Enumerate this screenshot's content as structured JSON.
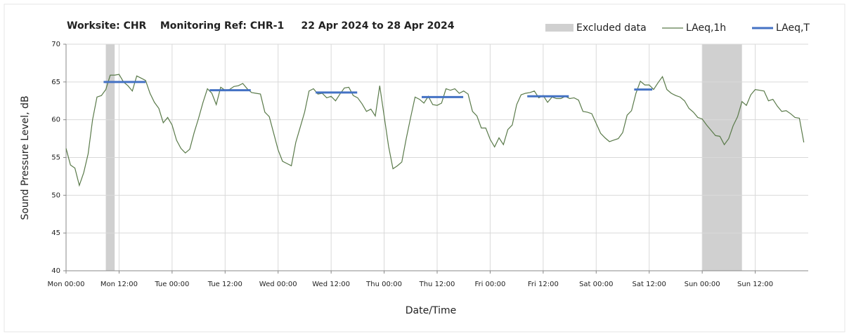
{
  "chart_data": {
    "type": "line",
    "title": "Worksite: CHR    Monitoring Ref: CHR-1     22 Apr 2024 to 28 Apr 2024",
    "x_label": "Date/Time",
    "y_label": "Sound Pressure Level, dB",
    "xlim": [
      0,
      168
    ],
    "ylim": [
      40,
      70
    ],
    "yticks": [
      40,
      45,
      50,
      55,
      60,
      65,
      70
    ],
    "xticks": [
      {
        "value": 0,
        "label": "Mon 00:00"
      },
      {
        "value": 12,
        "label": "Mon 12:00"
      },
      {
        "value": 24,
        "label": "Tue 00:00"
      },
      {
        "value": 36,
        "label": "Tue 12:00"
      },
      {
        "value": 48,
        "label": "Wed 00:00"
      },
      {
        "value": 60,
        "label": "Wed 12:00"
      },
      {
        "value": 72,
        "label": "Thu 00:00"
      },
      {
        "value": 84,
        "label": "Thu 12:00"
      },
      {
        "value": 96,
        "label": "Fri 00:00"
      },
      {
        "value": 108,
        "label": "Fri 12:00"
      },
      {
        "value": 120,
        "label": "Sat 00:00"
      },
      {
        "value": 132,
        "label": "Sat 12:00"
      },
      {
        "value": 144,
        "label": "Sun 00:00"
      },
      {
        "value": 156,
        "label": "Sun 12:00"
      }
    ],
    "grid": true,
    "excluded": {
      "name": "Excluded data",
      "color": "#d0d0d0",
      "ranges": [
        [
          9,
          11
        ],
        [
          144,
          153
        ]
      ]
    },
    "x": [
      0,
      1,
      2,
      3,
      4,
      5,
      6,
      7,
      8,
      9,
      10,
      11,
      12,
      13,
      14,
      15,
      16,
      17,
      18,
      19,
      20,
      21,
      22,
      23,
      24,
      25,
      26,
      27,
      28,
      29,
      30,
      31,
      32,
      33,
      34,
      35,
      36,
      37,
      38,
      39,
      40,
      41,
      42,
      43,
      44,
      45,
      46,
      47,
      48,
      49,
      50,
      51,
      52,
      53,
      54,
      55,
      56,
      57,
      58,
      59,
      60,
      61,
      62,
      63,
      64,
      65,
      66,
      67,
      68,
      69,
      70,
      71,
      72,
      73,
      74,
      75,
      76,
      77,
      78,
      79,
      80,
      81,
      82,
      83,
      84,
      85,
      86,
      87,
      88,
      89,
      90,
      91,
      92,
      93,
      94,
      95,
      96,
      97,
      98,
      99,
      100,
      101,
      102,
      103,
      104,
      105,
      106,
      107,
      108,
      109,
      110,
      111,
      112,
      113,
      114,
      115,
      116,
      117,
      118,
      119,
      120,
      121,
      122,
      123,
      124,
      125,
      126,
      127,
      128,
      129,
      130,
      131,
      132,
      133,
      134,
      135,
      136,
      137,
      138,
      139,
      140,
      141,
      142,
      143,
      144,
      145,
      146,
      147,
      148,
      149,
      150,
      151,
      152,
      153,
      154,
      155,
      156,
      157,
      158,
      159,
      160,
      161,
      162,
      163,
      164,
      165,
      166,
      167
    ],
    "series": [
      {
        "name": "LAeq,1h",
        "color": "#5a7a4a",
        "values": [
          56.2,
          54,
          53.6,
          51.3,
          53,
          55.5,
          60,
          63,
          63.2,
          64,
          65.9,
          65.9,
          66,
          65,
          64.5,
          63.8,
          65.8,
          65.5,
          65.2,
          63.5,
          62.3,
          61.5,
          59.6,
          60.3,
          59.3,
          57.3,
          56.2,
          55.6,
          56.1,
          58.3,
          60.2,
          62.3,
          64.1,
          63.5,
          62,
          64.3,
          63.9,
          64,
          64.4,
          64.5,
          64.8,
          64.1,
          63.6,
          63.5,
          63.4,
          61,
          60.4,
          58.2,
          56,
          54.5,
          54.2,
          53.9,
          57,
          59,
          61,
          63.8,
          64.1,
          63.4,
          63.5,
          62.9,
          63.1,
          62.5,
          63.4,
          64.2,
          64.3,
          63.2,
          62.9,
          62.1,
          61.1,
          61.4,
          60.5,
          64.5,
          60.5,
          56.5,
          53.5,
          53.9,
          54.4,
          57.5,
          60.3,
          63,
          62.7,
          62.2,
          63.1,
          62,
          61.9,
          62.2,
          64.1,
          63.9,
          64.1,
          63.5,
          63.8,
          63.4,
          61.1,
          60.5,
          58.9,
          58.9,
          57.4,
          56.4,
          57.6,
          56.7,
          58.7,
          59.3,
          62,
          63.3,
          63.5,
          63.6,
          63.8,
          62.9,
          63.2,
          62.3,
          63,
          62.8,
          62.8,
          63.1,
          62.8,
          62.9,
          62.6,
          61.1,
          61,
          60.8,
          59.5,
          58.2,
          57.6,
          57.1,
          57.3,
          57.5,
          58.3,
          60.6,
          61.2,
          63.5,
          65.1,
          64.6,
          64.6,
          64,
          64.9,
          65.7,
          64,
          63.5,
          63.2,
          63,
          62.5,
          61.5,
          61,
          60.3,
          60.1,
          59.3,
          58.6,
          57.9,
          57.8,
          56.7,
          57.5,
          59.2,
          60.4,
          62.4,
          61.9,
          63.3,
          64,
          63.9,
          63.8,
          62.5,
          62.7,
          61.8,
          61.1,
          61.2,
          60.8,
          60.3,
          60.2,
          57
        ]
      },
      {
        "name": "LAeq,T",
        "color": "#4472c4",
        "segments": [
          {
            "start": 8.5,
            "end": 18,
            "value": 65
          },
          {
            "start": 32.5,
            "end": 41.8,
            "value": 63.9
          },
          {
            "start": 56.5,
            "end": 65.9,
            "value": 63.6
          },
          {
            "start": 80.5,
            "end": 89.9,
            "value": 63
          },
          {
            "start": 104.4,
            "end": 113.8,
            "value": 63.1
          },
          {
            "start": 128.6,
            "end": 132.7,
            "value": 64
          }
        ]
      }
    ]
  }
}
